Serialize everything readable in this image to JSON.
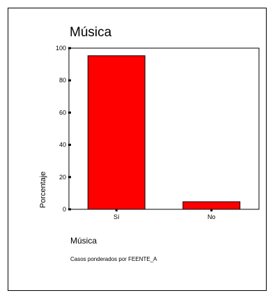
{
  "chart_data": {
    "type": "bar",
    "title": "Música",
    "categories": [
      "Sí",
      "No"
    ],
    "values": [
      95.3,
      4.7
    ],
    "xlabel": "Música",
    "ylabel": "Porcentaje",
    "ylim": [
      0,
      100
    ],
    "yticks": [
      0,
      20,
      40,
      60,
      80,
      100
    ],
    "grid": false,
    "colors": {
      "bar": "#ff0000",
      "outline": "#000000"
    },
    "footnote": "Casos ponderados por FEENTE_A"
  }
}
